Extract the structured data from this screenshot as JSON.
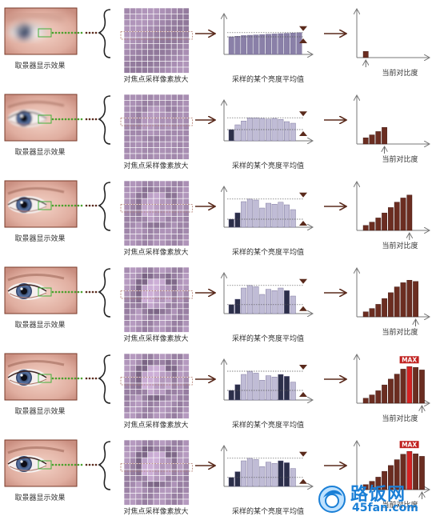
{
  "labels": {
    "viewfinder": "取景器显示效果",
    "zoom": "对焦点采样像素放大",
    "average": "采样的某个亮度平均值",
    "contrast": "当前对比度",
    "max": "MAX"
  },
  "watermark": {
    "cn": "路饭网",
    "en": "45fan.com"
  },
  "colors": {
    "arrow": "#5a2a1c",
    "contrast_bar": "#6b2d21",
    "max_bar": "#d42222",
    "avg_bar_light": "#c0bcd6",
    "avg_bar_dark": "#2c2f4a",
    "grid_line": "#ffffff",
    "green_dots": "#4aa02c",
    "watermark": "#1a7fd6"
  },
  "rows": [
    {
      "stage": 1,
      "avg_bars": [
        0.55,
        0.57,
        0.59,
        0.6,
        0.61,
        0.62,
        0.63,
        0.64,
        0.65,
        0.66,
        0.67,
        0.68
      ],
      "avg_dark": [],
      "contrast_bars": [
        0.15
      ],
      "max_index": null
    },
    {
      "stage": 2,
      "avg_bars": [
        0.35,
        0.5,
        0.62,
        0.72,
        0.72,
        0.7,
        0.68,
        0.7,
        0.67,
        0.6,
        0.55
      ],
      "avg_dark": [
        0
      ],
      "contrast_bars": [
        0.15,
        0.22,
        0.3,
        0.4
      ],
      "max_index": null
    },
    {
      "stage": 3,
      "avg_bars": [
        0.25,
        0.45,
        0.8,
        0.88,
        0.85,
        0.6,
        0.75,
        0.72,
        0.78,
        0.7,
        0.55
      ],
      "avg_dark": [
        0,
        1
      ],
      "contrast_bars": [
        0.12,
        0.2,
        0.3,
        0.42,
        0.55,
        0.68,
        0.78,
        0.85
      ],
      "max_index": null
    },
    {
      "stage": 4,
      "avg_bars": [
        0.28,
        0.45,
        0.8,
        0.88,
        0.84,
        0.6,
        0.76,
        0.72,
        0.8,
        0.72,
        0.55
      ],
      "avg_dark": [
        0,
        1,
        9
      ],
      "contrast_bars": [
        0.12,
        0.2,
        0.3,
        0.44,
        0.58,
        0.72,
        0.82,
        0.88,
        0.85
      ],
      "max_index": null
    },
    {
      "stage": 5,
      "avg_bars": [
        0.3,
        0.48,
        0.8,
        0.9,
        0.84,
        0.62,
        0.76,
        0.72,
        0.8,
        0.74,
        0.56
      ],
      "avg_dark": [
        0,
        1,
        8,
        9
      ],
      "contrast_bars": [
        0.12,
        0.2,
        0.3,
        0.44,
        0.58,
        0.7,
        0.82,
        0.88,
        0.86,
        0.8
      ],
      "max_index": 7
    },
    {
      "stage": 6,
      "avg_bars": [
        0.28,
        0.46,
        0.8,
        0.88,
        0.84,
        0.62,
        0.76,
        0.72,
        0.8,
        0.74,
        0.56
      ],
      "avg_dark": [
        0,
        1,
        8,
        9
      ],
      "contrast_bars": [
        0.12,
        0.2,
        0.3,
        0.44,
        0.58,
        0.72,
        0.85,
        0.92,
        0.86,
        0.8
      ],
      "max_index": 7
    }
  ]
}
